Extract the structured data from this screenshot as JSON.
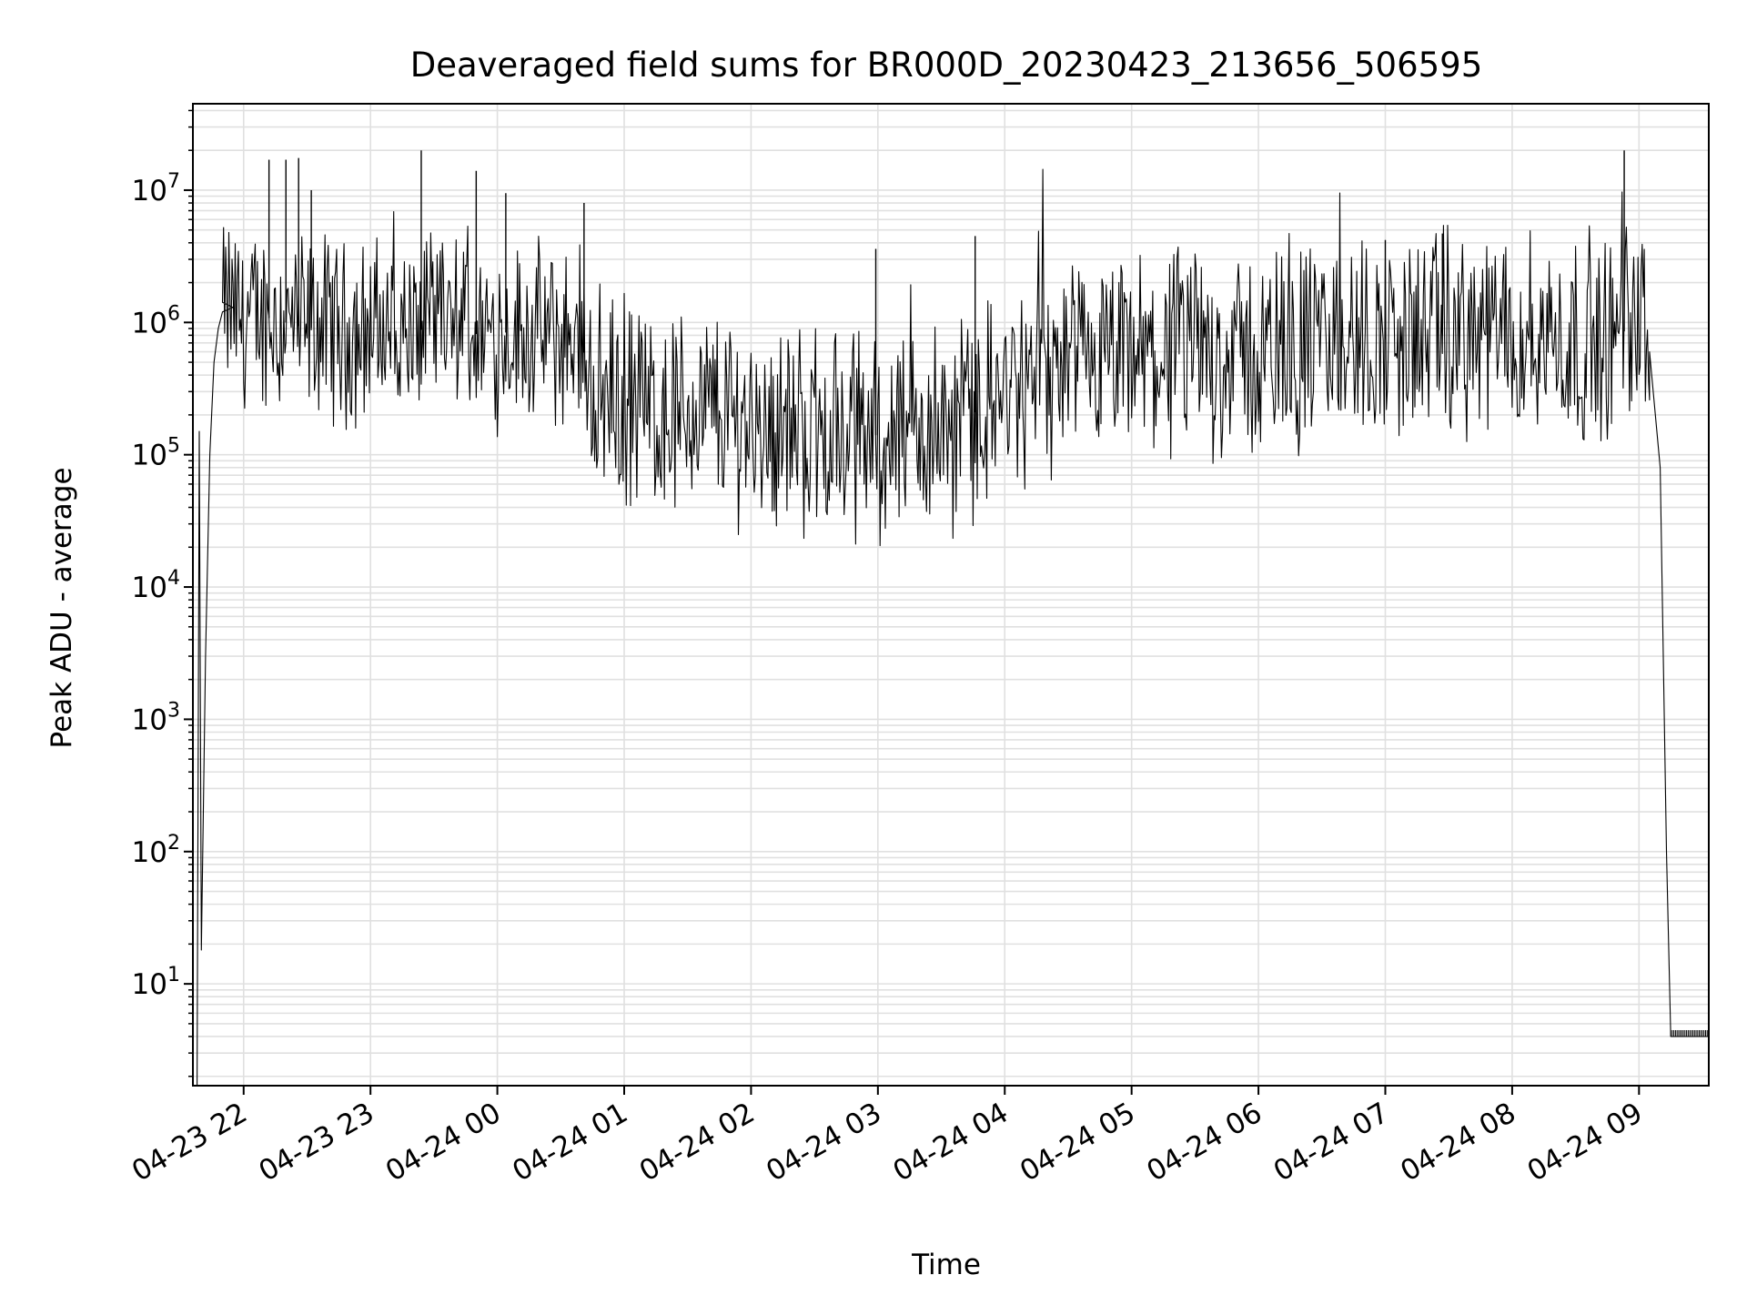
{
  "chart_data": {
    "type": "line",
    "title": "Deaveraged field sums for BR000D_20230423_213656_506595",
    "xlabel": "Time",
    "ylabel": "Peak ADU - average",
    "yscale": "log",
    "ylim": [
      1.7,
      45000000
    ],
    "xlim": [
      "2023-04-23 21:36",
      "2023-04-24 09:33"
    ],
    "grid": true,
    "line_color": "#000000",
    "x_ticks": [
      {
        "label": "04-23 22",
        "time": "2023-04-23 22:00"
      },
      {
        "label": "04-23 23",
        "time": "2023-04-23 23:00"
      },
      {
        "label": "04-24 00",
        "time": "2023-04-24 00:00"
      },
      {
        "label": "04-24 01",
        "time": "2023-04-24 01:00"
      },
      {
        "label": "04-24 02",
        "time": "2023-04-24 02:00"
      },
      {
        "label": "04-24 03",
        "time": "2023-04-24 03:00"
      },
      {
        "label": "04-24 04",
        "time": "2023-04-24 04:00"
      },
      {
        "label": "04-24 05",
        "time": "2023-04-24 05:00"
      },
      {
        "label": "04-24 06",
        "time": "2023-04-24 06:00"
      },
      {
        "label": "04-24 07",
        "time": "2023-04-24 07:00"
      },
      {
        "label": "04-24 08",
        "time": "2023-04-24 08:00"
      },
      {
        "label": "04-24 09",
        "time": "2023-04-24 09:00"
      }
    ],
    "y_ticks": [
      {
        "base": "10",
        "exp": "1",
        "value": 10
      },
      {
        "base": "10",
        "exp": "2",
        "value": 100
      },
      {
        "base": "10",
        "exp": "3",
        "value": 1000
      },
      {
        "base": "10",
        "exp": "4",
        "value": 10000
      },
      {
        "base": "10",
        "exp": "5",
        "value": 100000
      },
      {
        "base": "10",
        "exp": "6",
        "value": 1000000
      },
      {
        "base": "10",
        "exp": "7",
        "value": 10000000
      }
    ],
    "series": [
      {
        "x": [
          "2023-04-23 21:38",
          "2023-04-23 21:39",
          "2023-04-23 21:40",
          "2023-04-23 21:42",
          "2023-04-23 21:44",
          "2023-04-23 21:46",
          "2023-04-23 21:48",
          "2023-04-23 21:50",
          "2023-04-23 21:55",
          "2023-04-23 22:00",
          "2023-04-23 22:10",
          "2023-04-23 22:20",
          "2023-04-23 22:30",
          "2023-04-23 22:40",
          "2023-04-23 22:50",
          "2023-04-23 23:00",
          "2023-04-23 23:15",
          "2023-04-23 23:30",
          "2023-04-23 23:45",
          "2023-04-24 00:00",
          "2023-04-24 00:20",
          "2023-04-24 00:40",
          "2023-04-24 00:45",
          "2023-04-24 01:00",
          "2023-04-24 01:20",
          "2023-04-24 01:40",
          "2023-04-24 02:00",
          "2023-04-24 02:30",
          "2023-04-24 03:00",
          "2023-04-24 03:30",
          "2023-04-24 04:00",
          "2023-04-24 04:30",
          "2023-04-24 05:00",
          "2023-04-24 05:30",
          "2023-04-24 06:00",
          "2023-04-24 06:30",
          "2023-04-24 07:00",
          "2023-04-24 07:30",
          "2023-04-24 08:00",
          "2023-04-24 08:30",
          "2023-04-24 08:50",
          "2023-04-24 09:00",
          "2023-04-24 09:05",
          "2023-04-24 09:10",
          "2023-04-24 09:13",
          "2023-04-24 09:15",
          "2023-04-24 09:20",
          "2023-04-24 09:33"
        ],
        "y": [
          1.7,
          150000,
          18,
          3000,
          100000,
          500000,
          900000,
          1200000,
          1300000,
          1000000,
          1100000,
          1000000,
          900000,
          950000,
          800000,
          900000,
          850000,
          900000,
          800000,
          850000,
          800000,
          700000,
          300000,
          250000,
          200000,
          220000,
          180000,
          150000,
          140000,
          150000,
          280000,
          400000,
          500000,
          600000,
          550000,
          700000,
          750000,
          800000,
          800000,
          750000,
          800000,
          1000000,
          600000,
          80000,
          100,
          4,
          4,
          4
        ]
      }
    ],
    "spikes": [
      {
        "x": "2023-04-23 22:12",
        "y": 17000000
      },
      {
        "x": "2023-04-23 22:20",
        "y": 17000000
      },
      {
        "x": "2023-04-23 22:26",
        "y": 17500000
      },
      {
        "x": "2023-04-23 22:32",
        "y": 10000000
      },
      {
        "x": "2023-04-23 23:24",
        "y": 20000000
      },
      {
        "x": "2023-04-23 23:50",
        "y": 14000000
      },
      {
        "x": "2023-04-24 00:04",
        "y": 9500000
      },
      {
        "x": "2023-04-24 00:41",
        "y": 8000000
      },
      {
        "x": "2023-04-24 02:59",
        "y": 3600000
      },
      {
        "x": "2023-04-24 03:46",
        "y": 4500000
      },
      {
        "x": "2023-04-24 07:00",
        "y": 4200000
      },
      {
        "x": "2023-04-24 07:27",
        "y": 4700000
      },
      {
        "x": "2023-04-24 08:53",
        "y": 20000000
      }
    ]
  }
}
